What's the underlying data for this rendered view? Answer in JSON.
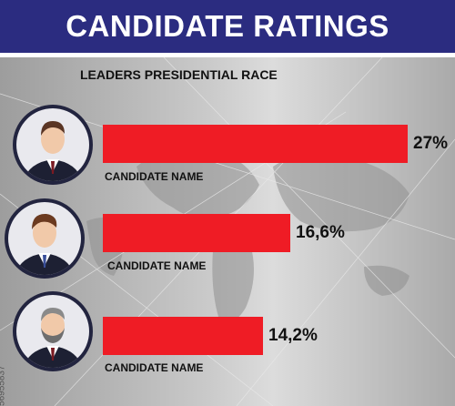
{
  "header": {
    "title": "CANDIDATE RATINGS"
  },
  "chart_data": {
    "type": "bar",
    "orientation": "horizontal",
    "title": "CANDIDATE RATINGS",
    "subtitle": "LEADERS PRESIDENTIAL RACE",
    "categories": [
      "CANDIDATE NAME",
      "CANDIDATE NAME",
      "CANDIDATE NAME"
    ],
    "values": [
      27,
      16.6,
      14.2
    ],
    "value_labels": [
      "27%",
      "16,6%",
      "14,2%"
    ],
    "unit": "%",
    "xlim": [
      0,
      27
    ],
    "grid": false,
    "legend": "none",
    "bar_color": "#ef1c25"
  },
  "side_id": "556955837",
  "colors": {
    "header_bg": "#2b2c80",
    "bar": "#ef1c25",
    "avatar_ring": "#22243f"
  },
  "icons": [
    "person-avatar-icon",
    "person-avatar-icon",
    "bearded-person-avatar-icon"
  ]
}
